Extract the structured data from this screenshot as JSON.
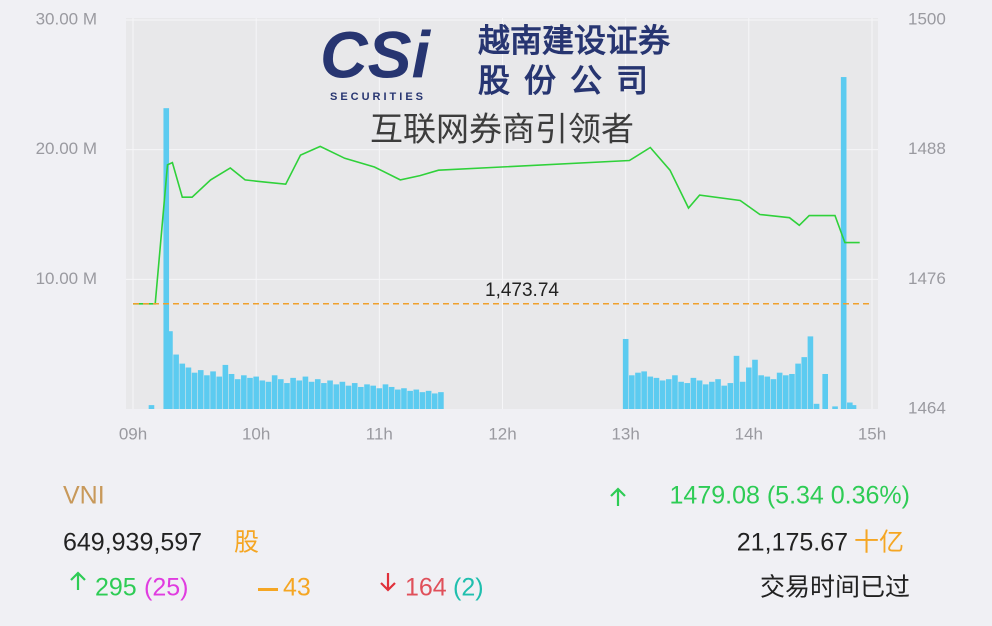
{
  "chart_data": {
    "type": "line",
    "xlim": [
      9,
      15
    ],
    "xticks": [
      {
        "value": 9,
        "label": "09h"
      },
      {
        "value": 10,
        "label": "10h"
      },
      {
        "value": 11,
        "label": "11h"
      },
      {
        "value": 12,
        "label": "12h"
      },
      {
        "value": 13,
        "label": "13h"
      },
      {
        "value": 14,
        "label": "14h"
      },
      {
        "value": 15,
        "label": "15h"
      }
    ],
    "ylim": [
      0,
      30000000
    ],
    "yticks": [
      {
        "value": 10000000,
        "label": "10.00 M"
      },
      {
        "value": 20000000,
        "label": "20.00 M"
      },
      {
        "value": 30000000,
        "label": "30.00 M"
      }
    ],
    "y2lim": [
      1464,
      1500
    ],
    "y2ticks": [
      1464,
      1476,
      1488,
      1500
    ],
    "grid": true,
    "reference_line": {
      "value": 1473.74,
      "label": "1,473.74",
      "color": "#f0a02c"
    },
    "series": [
      {
        "type": "bar",
        "color": "#5ccbf0",
        "x": [
          9.15,
          9.27,
          9.3,
          9.35,
          9.4,
          9.45,
          9.5,
          9.55,
          9.6,
          9.65,
          9.7,
          9.75,
          9.8,
          9.85,
          9.9,
          9.95,
          10.0,
          10.05,
          10.1,
          10.15,
          10.2,
          10.25,
          10.3,
          10.35,
          10.4,
          10.45,
          10.5,
          10.55,
          10.6,
          10.65,
          10.7,
          10.75,
          10.8,
          10.85,
          10.9,
          10.95,
          11.0,
          11.05,
          11.1,
          11.15,
          11.2,
          11.25,
          11.3,
          11.35,
          11.4,
          11.45,
          11.5,
          13.0,
          13.05,
          13.1,
          13.15,
          13.2,
          13.25,
          13.3,
          13.35,
          13.4,
          13.45,
          13.5,
          13.55,
          13.6,
          13.65,
          13.7,
          13.75,
          13.8,
          13.85,
          13.9,
          13.95,
          14.0,
          14.05,
          14.1,
          14.15,
          14.2,
          14.25,
          14.3,
          14.35,
          14.4,
          14.45,
          14.5,
          14.55,
          14.62,
          14.7,
          14.77,
          14.82,
          14.85
        ],
        "values": [
          300000,
          23200000,
          6000000,
          4200000,
          3500000,
          3200000,
          2800000,
          3000000,
          2600000,
          2900000,
          2500000,
          3400000,
          2700000,
          2300000,
          2600000,
          2400000,
          2500000,
          2200000,
          2100000,
          2600000,
          2300000,
          2000000,
          2400000,
          2200000,
          2500000,
          2100000,
          2300000,
          2000000,
          2200000,
          1900000,
          2100000,
          1800000,
          2000000,
          1700000,
          1900000,
          1800000,
          1600000,
          1900000,
          1700000,
          1500000,
          1600000,
          1400000,
          1500000,
          1300000,
          1400000,
          1200000,
          1300000,
          5400000,
          2600000,
          2800000,
          2900000,
          2500000,
          2400000,
          2200000,
          2300000,
          2600000,
          2100000,
          2000000,
          2400000,
          2200000,
          1900000,
          2100000,
          2300000,
          1800000,
          2000000,
          4100000,
          2100000,
          3200000,
          3800000,
          2600000,
          2500000,
          2300000,
          2800000,
          2600000,
          2700000,
          3500000,
          4000000,
          5600000,
          400000,
          2700000,
          200000,
          25600000,
          500000,
          300000
        ]
      },
      {
        "type": "line",
        "axis": "y2",
        "color": "#2fd13a",
        "x": [
          9.0,
          9.18,
          9.28,
          9.32,
          9.4,
          9.48,
          9.63,
          9.79,
          9.91,
          10.07,
          10.24,
          10.36,
          10.52,
          10.72,
          10.96,
          11.17,
          11.33,
          11.48,
          13.03,
          13.2,
          13.36,
          13.51,
          13.6,
          13.93,
          14.09,
          14.33,
          14.41,
          14.49,
          14.7,
          14.78,
          14.9
        ],
        "values": [
          1473.74,
          1473.74,
          1486.6,
          1486.8,
          1483.6,
          1483.6,
          1485.2,
          1486.3,
          1485.2,
          1485.0,
          1484.8,
          1487.5,
          1488.3,
          1487.2,
          1486.4,
          1485.2,
          1485.6,
          1486.1,
          1487.0,
          1488.2,
          1486.1,
          1482.6,
          1483.8,
          1483.3,
          1482.0,
          1481.7,
          1481.0,
          1481.9,
          1481.9,
          1479.4,
          1479.4
        ]
      }
    ]
  },
  "logo": {
    "mark": "CSi",
    "subtitle": "SECURITIES",
    "name_line1": "越南建设证券",
    "name_line2": "股份公司",
    "slogan": "互联网券商引领者"
  },
  "summary": {
    "index": "VNI",
    "change": "1479.08 (5.34 0.36%)",
    "volume": "649,939,597",
    "volume_unit": "股",
    "value": "21,175.67",
    "value_unit": "十亿",
    "advances": "295",
    "advances_ceiling": "(25)",
    "unchanged": "43",
    "declines": "164",
    "declines_floor": "(2)",
    "status": "交易时间已过"
  }
}
